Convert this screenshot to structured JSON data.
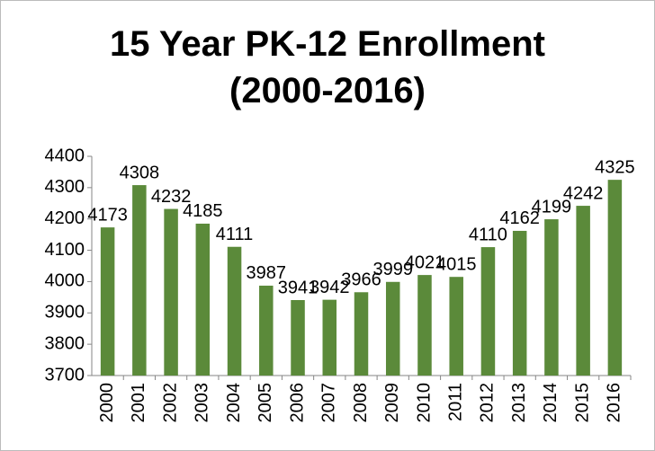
{
  "chart_data": {
    "type": "bar",
    "title": "15 Year PK-12 Enrollment (2000-2016)",
    "categories": [
      "2000",
      "2001",
      "2002",
      "2003",
      "2004",
      "2005",
      "2006",
      "2007",
      "2008",
      "2009",
      "2010",
      "2011",
      "2012",
      "2013",
      "2014",
      "2015",
      "2016"
    ],
    "values": [
      4173,
      4308,
      4232,
      4185,
      4111,
      3987,
      3941,
      3942,
      3966,
      3999,
      4021,
      4015,
      4110,
      4162,
      4199,
      4242,
      4325
    ],
    "color": "#5b8a3a",
    "ylim": [
      3700,
      4400
    ],
    "yticks": [
      3700,
      3800,
      3900,
      4000,
      4100,
      4200,
      4300,
      4400
    ],
    "grid": false
  }
}
